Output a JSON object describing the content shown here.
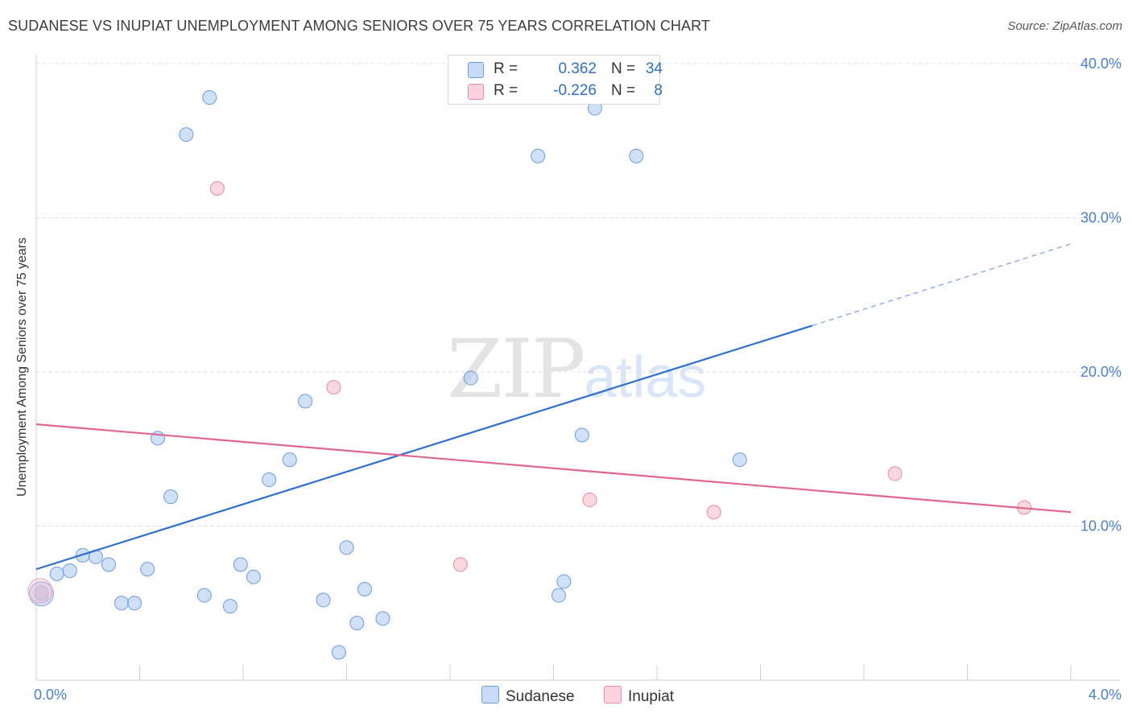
{
  "title": "SUDANESE VS INUPIAT UNEMPLOYMENT AMONG SENIORS OVER 75 YEARS CORRELATION CHART",
  "source": "Source: ZipAtlas.com",
  "watermark": {
    "zip": "ZIP",
    "atlas": "atlas"
  },
  "legend": {
    "sudanese": {
      "r_label": "R =",
      "r_value": "0.362",
      "n_label": "N =",
      "n_value": "34",
      "color": "#aac8f0"
    },
    "inupiat": {
      "r_label": "R =",
      "r_value": "-0.226",
      "n_label": "N =",
      "n_value": "8",
      "color": "#f7b8c8"
    }
  },
  "bottom_legend": {
    "sudanese": "Sudanese",
    "inupiat": "Inupiat"
  },
  "chart_data": {
    "type": "scatter",
    "title": "SUDANESE VS INUPIAT UNEMPLOYMENT AMONG SENIORS OVER 75 YEARS CORRELATION CHART",
    "xlabel": "",
    "ylabel": "Unemployment Among Seniors over 75 years",
    "xlim": [
      0,
      4.0
    ],
    "ylim": [
      0,
      41
    ],
    "x_tick_labels": [
      "0.0%",
      "4.0%"
    ],
    "y_ticks": [
      10,
      20,
      30,
      40
    ],
    "y_tick_labels": [
      "10.0%",
      "20.0%",
      "30.0%",
      "40.0%"
    ],
    "grid": "horizontal dashed",
    "legend_placement": "top-center",
    "series": [
      {
        "name": "Sudanese",
        "color": "#aac8f0",
        "stroke": "#6b9de0",
        "points": [
          [
            0.02,
            5.6
          ],
          [
            0.08,
            6.9
          ],
          [
            0.13,
            7.1
          ],
          [
            0.18,
            8.1
          ],
          [
            0.23,
            8.0
          ],
          [
            0.28,
            7.5
          ],
          [
            0.33,
            5.0
          ],
          [
            0.38,
            5.0
          ],
          [
            0.43,
            7.2
          ],
          [
            0.47,
            15.7
          ],
          [
            0.52,
            11.9
          ],
          [
            0.58,
            35.4
          ],
          [
            0.65,
            5.5
          ],
          [
            0.67,
            37.8
          ],
          [
            0.75,
            4.8
          ],
          [
            0.79,
            7.5
          ],
          [
            0.84,
            6.7
          ],
          [
            0.9,
            13.0
          ],
          [
            0.98,
            14.3
          ],
          [
            1.04,
            18.1
          ],
          [
            1.11,
            5.2
          ],
          [
            1.17,
            1.8
          ],
          [
            1.2,
            8.6
          ],
          [
            1.24,
            3.7
          ],
          [
            1.27,
            5.9
          ],
          [
            1.34,
            4.0
          ],
          [
            1.68,
            19.6
          ],
          [
            1.94,
            34.0
          ],
          [
            2.02,
            5.5
          ],
          [
            2.04,
            6.4
          ],
          [
            2.11,
            15.9
          ],
          [
            2.16,
            37.1
          ],
          [
            2.32,
            34.0
          ],
          [
            2.72,
            14.3
          ]
        ],
        "trend": {
          "x": [
            0.0,
            3.0
          ],
          "y": [
            7.2,
            23.0
          ],
          "dashed_extension_to": [
            4.0,
            28.3
          ]
        }
      },
      {
        "name": "Inupiat",
        "color": "#f7b8c8",
        "stroke": "#e88aa6",
        "points": [
          [
            0.02,
            5.7
          ],
          [
            0.7,
            31.9
          ],
          [
            1.15,
            19.0
          ],
          [
            1.64,
            7.5
          ],
          [
            2.14,
            11.7
          ],
          [
            2.62,
            10.9
          ],
          [
            3.32,
            13.4
          ],
          [
            3.82,
            11.2
          ]
        ],
        "trend": {
          "x": [
            0.0,
            4.0
          ],
          "y": [
            16.6,
            10.9
          ]
        }
      }
    ]
  }
}
